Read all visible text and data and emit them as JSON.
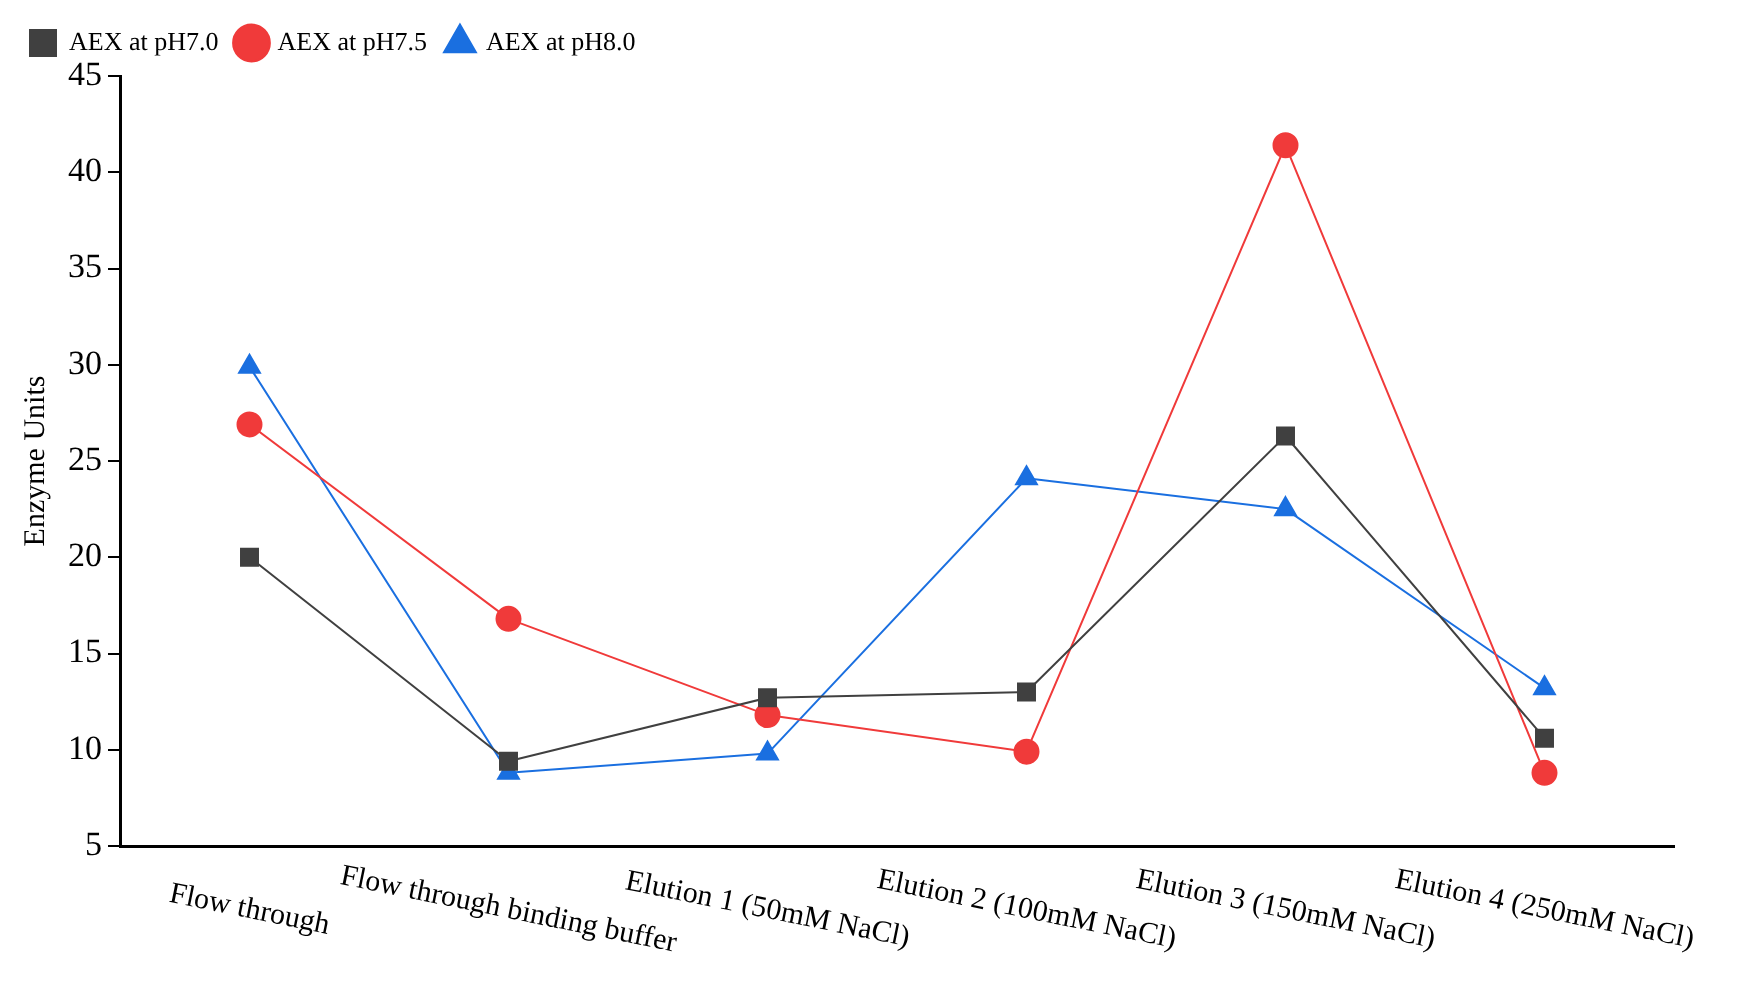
{
  "chart_data": {
    "type": "line",
    "ylabel": "Enzyme Units",
    "categories": [
      "Flow through",
      "Flow through binding buffer",
      "Elution 1 (50mM NaCl)",
      "Elution 2 (100mM NaCl)",
      "Elution 3 (150mM NaCl)",
      "Elution 4 (250mM NaCl)"
    ],
    "series": [
      {
        "name": "AEX at pH7.0",
        "color": "#404040",
        "marker": "square",
        "values": [
          20.0,
          9.4,
          12.7,
          13.0,
          26.3,
          10.6
        ]
      },
      {
        "name": "AEX at pH7.5",
        "color": "#f03a3a",
        "marker": "circle",
        "values": [
          26.9,
          16.8,
          11.8,
          9.9,
          41.4,
          8.8
        ]
      },
      {
        "name": "AEX at pH8.0",
        "color": "#1a6fe0",
        "marker": "triangle",
        "values": [
          29.9,
          8.8,
          9.8,
          24.1,
          22.5,
          13.2
        ]
      }
    ],
    "ylim": [
      5,
      45
    ],
    "yticks": [
      5,
      10,
      15,
      20,
      25,
      30,
      35,
      40,
      45
    ],
    "grid": false,
    "legend": "top left"
  }
}
